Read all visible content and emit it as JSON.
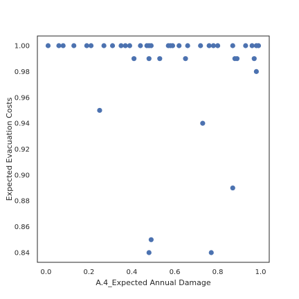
{
  "chart_data": {
    "type": "scatter",
    "title": "",
    "xlabel": "A.4_Expected Annual Damage",
    "ylabel": "Expected Evacuation Costs",
    "xlim": [
      -0.04,
      1.04
    ],
    "ylim": [
      0.8325,
      1.0075
    ],
    "x_ticks": [
      0.0,
      0.2,
      0.4,
      0.6,
      0.8,
      1.0
    ],
    "x_tick_labels": [
      "0.0",
      "0.2",
      "0.4",
      "0.6",
      "0.8",
      "1.0"
    ],
    "y_ticks": [
      0.84,
      0.86,
      0.88,
      0.9,
      0.92,
      0.94,
      0.96,
      0.98,
      1.0
    ],
    "y_tick_labels": [
      "0.84",
      "0.86",
      "0.88",
      "0.90",
      "0.92",
      "0.94",
      "0.96",
      "0.98",
      "1.00"
    ],
    "grid": false,
    "marker_color": "#4c72b0",
    "points": [
      {
        "x": 0.01,
        "y": 1.0
      },
      {
        "x": 0.06,
        "y": 1.0
      },
      {
        "x": 0.08,
        "y": 1.0
      },
      {
        "x": 0.13,
        "y": 1.0
      },
      {
        "x": 0.19,
        "y": 1.0
      },
      {
        "x": 0.21,
        "y": 1.0
      },
      {
        "x": 0.27,
        "y": 1.0
      },
      {
        "x": 0.31,
        "y": 1.0
      },
      {
        "x": 0.35,
        "y": 1.0
      },
      {
        "x": 0.37,
        "y": 1.0
      },
      {
        "x": 0.39,
        "y": 1.0
      },
      {
        "x": 0.44,
        "y": 1.0
      },
      {
        "x": 0.47,
        "y": 1.0
      },
      {
        "x": 0.48,
        "y": 1.0
      },
      {
        "x": 0.49,
        "y": 1.0
      },
      {
        "x": 0.57,
        "y": 1.0
      },
      {
        "x": 0.58,
        "y": 1.0
      },
      {
        "x": 0.59,
        "y": 1.0
      },
      {
        "x": 0.62,
        "y": 1.0
      },
      {
        "x": 0.66,
        "y": 1.0
      },
      {
        "x": 0.72,
        "y": 1.0
      },
      {
        "x": 0.76,
        "y": 1.0
      },
      {
        "x": 0.78,
        "y": 1.0
      },
      {
        "x": 0.8,
        "y": 1.0
      },
      {
        "x": 0.87,
        "y": 1.0
      },
      {
        "x": 0.93,
        "y": 1.0
      },
      {
        "x": 0.96,
        "y": 1.0
      },
      {
        "x": 0.98,
        "y": 1.0
      },
      {
        "x": 0.99,
        "y": 1.0
      },
      {
        "x": 0.41,
        "y": 0.99
      },
      {
        "x": 0.48,
        "y": 0.99
      },
      {
        "x": 0.53,
        "y": 0.99
      },
      {
        "x": 0.65,
        "y": 0.99
      },
      {
        "x": 0.88,
        "y": 0.99
      },
      {
        "x": 0.89,
        "y": 0.99
      },
      {
        "x": 0.97,
        "y": 0.99
      },
      {
        "x": 0.98,
        "y": 0.98
      },
      {
        "x": 0.25,
        "y": 0.95
      },
      {
        "x": 0.73,
        "y": 0.94
      },
      {
        "x": 0.87,
        "y": 0.89
      },
      {
        "x": 0.49,
        "y": 0.85
      },
      {
        "x": 0.48,
        "y": 0.84
      },
      {
        "x": 0.77,
        "y": 0.84
      }
    ]
  }
}
